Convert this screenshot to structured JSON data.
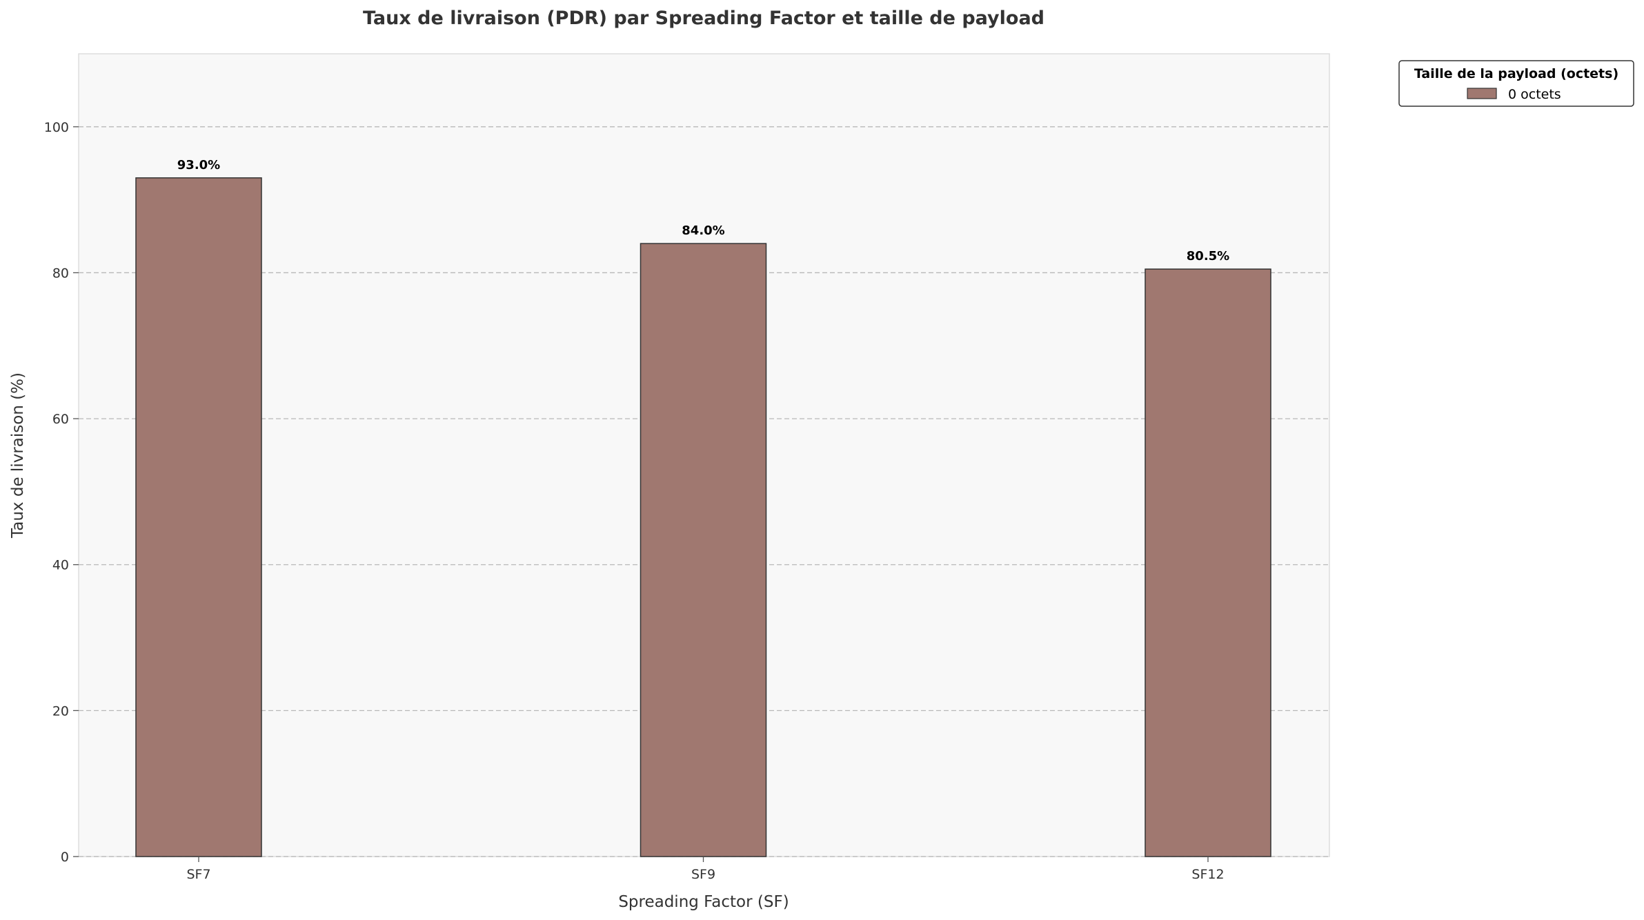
{
  "chart_data": {
    "type": "bar",
    "title": "Taux de livraison (PDR) par Spreading Factor et taille de payload",
    "xlabel": "Spreading Factor (SF)",
    "ylabel": "Taux de livraison (%)",
    "categories": [
      "SF7",
      "SF9",
      "SF12"
    ],
    "series": [
      {
        "name": "0 octets",
        "values": [
          93.0,
          84.0,
          80.5
        ],
        "color": "#a07870"
      }
    ],
    "data_labels": [
      "93.0%",
      "84.0%",
      "80.5%"
    ],
    "ylim": [
      0,
      110
    ],
    "yticks": [
      0,
      20,
      40,
      60,
      80,
      100
    ],
    "grid": "y-dashed",
    "legend": {
      "title": "Taille de la payload (octets)",
      "placement": "outside-top-right"
    },
    "colors": {
      "plot_background": "#f8f8f8",
      "bar_edge": "#333333",
      "grid": "#b8b8b8"
    }
  }
}
